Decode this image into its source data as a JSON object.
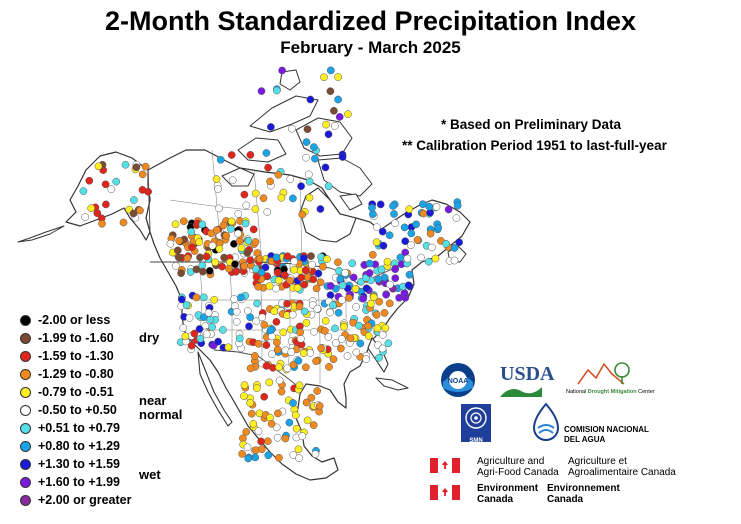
{
  "title": "2-Month Standardized Precipitation Index",
  "subtitle": "February - March 2025",
  "notes": [
    "* Based on Preliminary Data",
    "** Calibration Period 1951 to last-full-year"
  ],
  "colors": {
    "land": "#ffffff",
    "border": "#333333",
    "cat_le_m200": "#000000",
    "cat_m199_m160": "#7a4a32",
    "cat_m159_m130": "#e0251c",
    "cat_m129_m080": "#f08a1e",
    "cat_m079_m051": "#ffee22",
    "cat_m050_p050": "#ffffff",
    "cat_p051_p079": "#55e0e8",
    "cat_p080_p129": "#1aa3e6",
    "cat_p130_p159": "#1a1ad8",
    "cat_p160_p199": "#7a1ae0",
    "cat_ge_p200": "#8a2aa0"
  },
  "legend": {
    "items": [
      {
        "label": "-2.00 or less",
        "color": "#000000"
      },
      {
        "label": "-1.99 to -1.60",
        "color": "#7a4a32"
      },
      {
        "label": "-1.59 to -1.30",
        "color": "#e0251c"
      },
      {
        "label": "-1.29 to -0.80",
        "color": "#f08a1e"
      },
      {
        "label": "-0.79 to -0.51",
        "color": "#ffee22"
      },
      {
        "label": "-0.50 to +0.50",
        "color": "#ffffff"
      },
      {
        "label": "+0.51 to +0.79",
        "color": "#55e0e8"
      },
      {
        "label": "+0.80 to +1.29",
        "color": "#1aa3e6"
      },
      {
        "label": "+1.30 to +1.59",
        "color": "#1a1ad8"
      },
      {
        "label": "+1.60 to +1.99",
        "color": "#7a1ae0"
      },
      {
        "label": "+2.00 or greater",
        "color": "#8a2aa0"
      }
    ],
    "tags": {
      "dry": "dry",
      "near_1": "near",
      "near_2": "normal",
      "wet": "wet"
    }
  },
  "logos": {
    "noaa": "NOAA",
    "usda": "USDA",
    "ndmc_1": "National",
    "ndmc_2": "Drought Mitigation",
    "ndmc_3": "Center",
    "smn": "SMN",
    "conagua_1": "COMISION NACIONAL",
    "conagua_2": "DEL AGUA",
    "aafc_en_1": "Agriculture and",
    "aafc_en_2": "Agri-Food Canada",
    "aafc_fr_1": "Agriculture et",
    "aafc_fr_2": "Agroalimentaire Canada",
    "ec_en_1": "Environment",
    "ec_en_2": "Canada",
    "ec_fr_1": "Environnement",
    "ec_fr_2": "Canada"
  }
}
